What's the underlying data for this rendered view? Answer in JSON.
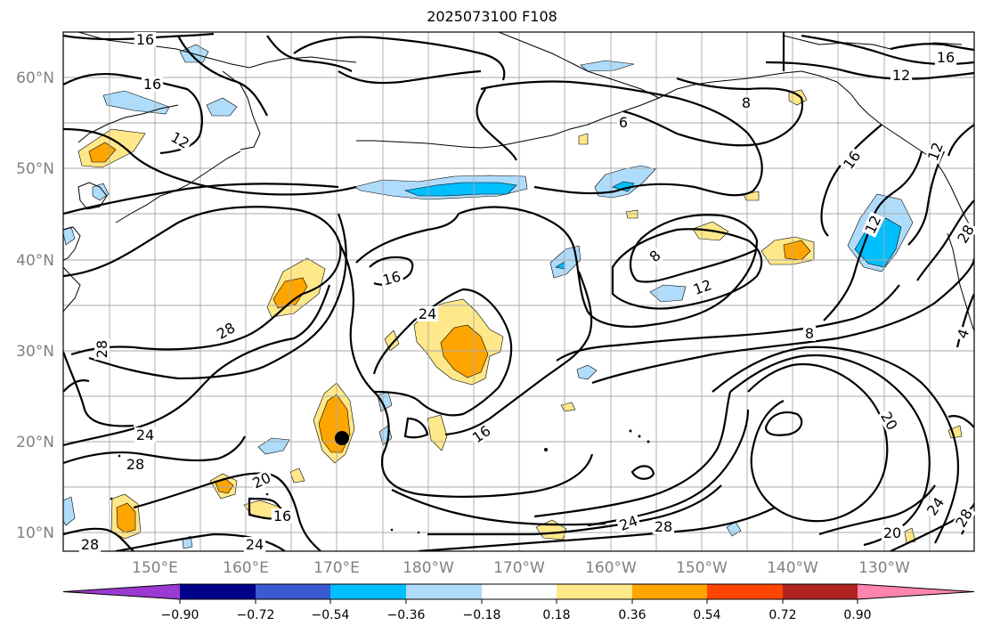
{
  "title": "2025073100 F108",
  "lat_labels": [
    "60°N",
    "50°N",
    "40°N",
    "30°N",
    "20°N",
    "10°N"
  ],
  "lon_labels": [
    "150°E",
    "160°E",
    "170°E",
    "180°W",
    "170°W",
    "160°W",
    "150°W",
    "140°W",
    "130°W"
  ],
  "colorbar": {
    "colors": [
      "#9a3ad1",
      "#00008b",
      "#3a5bcf",
      "#00bfff",
      "#aedcfa",
      "#ffffff",
      "#ffe88a",
      "#ffa500",
      "#ff4500",
      "#b22222",
      "#ff85b0"
    ],
    "tick_labels": [
      "−0.90",
      "−0.72",
      "−0.54",
      "−0.36",
      "−0.18",
      "0.18",
      "0.36",
      "0.54",
      "0.72",
      "0.90"
    ]
  },
  "contour_labels": [
    {
      "text": "16"
    },
    {
      "text": "16"
    },
    {
      "text": "12"
    },
    {
      "text": "6"
    },
    {
      "text": "8"
    },
    {
      "text": "16"
    },
    {
      "text": "12"
    },
    {
      "text": "12"
    },
    {
      "text": "16"
    },
    {
      "text": "12"
    },
    {
      "text": "8"
    },
    {
      "text": "12"
    },
    {
      "text": "16"
    },
    {
      "text": "24"
    },
    {
      "text": "28"
    },
    {
      "text": "28"
    },
    {
      "text": "8"
    },
    {
      "text": "4"
    },
    {
      "text": "20"
    },
    {
      "text": "24"
    },
    {
      "text": "28"
    },
    {
      "text": "20"
    },
    {
      "text": "16"
    },
    {
      "text": "16"
    },
    {
      "text": "24"
    },
    {
      "text": "28"
    },
    {
      "text": "24"
    },
    {
      "text": "28"
    },
    {
      "text": "28"
    },
    {
      "text": "20"
    },
    {
      "text": "24"
    },
    {
      "text": "28"
    }
  ],
  "marker": {
    "label": "storm-center",
    "lat": 20.3,
    "lon": 170.8
  }
}
